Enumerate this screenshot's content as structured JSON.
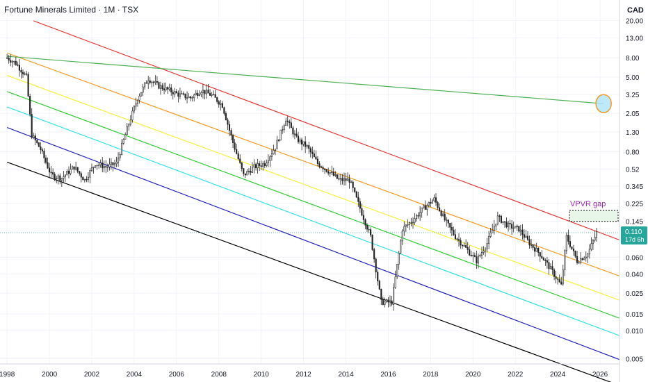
{
  "header": {
    "title": "Fortune Minerals Limited · 1M · TSX",
    "currency": "CAD"
  },
  "colors": {
    "up": "#26a69a",
    "down": "#ef5350",
    "candle_body": "#111111",
    "red_line": "#e53935",
    "orange_line": "#f59a23",
    "yellow_line": "#f7ef3a",
    "green_line": "#33cc33",
    "cyan_line": "#33e0e6",
    "blue_line": "#2222bb",
    "black_line": "#000000",
    "resistance_line": "#4caf50",
    "vpvr_label": "#9c27b0",
    "price_label_bg": "#26a69a"
  },
  "chart_data": {
    "type": "candlestick",
    "title": "Fortune Minerals Limited · 1M · TSX",
    "y_scale": "log",
    "ylim": [
      0.0044,
      33
    ],
    "xlim": [
      "1997-09",
      "2026-12"
    ],
    "y_ticks": [
      "20.00",
      "13.00",
      "8.00",
      "5.00",
      "3.25",
      "2.05",
      "1.30",
      "0.80",
      "0.52",
      "0.345",
      "0.225",
      "0.145",
      "0.060",
      "0.040",
      "0.025",
      "0.015",
      "0.010",
      "0.005"
    ],
    "x_ticks": [
      "1998",
      "2000",
      "2002",
      "2004",
      "2006",
      "2008",
      "2010",
      "2012",
      "2014",
      "2016",
      "2018",
      "2020",
      "2022",
      "2024",
      "2026"
    ],
    "last_price": "0.110",
    "countdown": "17d 6h",
    "annotation": "VPVR gap",
    "vpvr_gap_range": [
      0.145,
      0.19
    ],
    "ellipse_marker": {
      "date": "2026-03",
      "price": 2.6
    },
    "price_path": [
      [
        "1998-01",
        8.0
      ],
      [
        "1998-06",
        7.0
      ],
      [
        "1998-12",
        5.0
      ],
      [
        "1999-03",
        1.2
      ],
      [
        "1999-08",
        0.85
      ],
      [
        "2000-02",
        0.45
      ],
      [
        "2000-08",
        0.42
      ],
      [
        "2001-03",
        0.55
      ],
      [
        "2001-09",
        0.4
      ],
      [
        "2002-03",
        0.6
      ],
      [
        "2002-09",
        0.55
      ],
      [
        "2003-03",
        0.6
      ],
      [
        "2003-09",
        1.4
      ],
      [
        "2004-03",
        3.0
      ],
      [
        "2004-09",
        4.8
      ],
      [
        "2005-03",
        4.0
      ],
      [
        "2005-09",
        3.6
      ],
      [
        "2006-03",
        3.2
      ],
      [
        "2006-09",
        3.0
      ],
      [
        "2007-03",
        3.6
      ],
      [
        "2007-09",
        3.2
      ],
      [
        "2008-03",
        2.5
      ],
      [
        "2008-09",
        1.0
      ],
      [
        "2009-03",
        0.45
      ],
      [
        "2009-09",
        0.55
      ],
      [
        "2010-03",
        0.6
      ],
      [
        "2010-09",
        0.9
      ],
      [
        "2011-03",
        1.8
      ],
      [
        "2011-09",
        1.1
      ],
      [
        "2012-03",
        0.9
      ],
      [
        "2012-09",
        0.6
      ],
      [
        "2013-03",
        0.5
      ],
      [
        "2013-09",
        0.4
      ],
      [
        "2014-03",
        0.4
      ],
      [
        "2014-09",
        0.2
      ],
      [
        "2015-03",
        0.1
      ],
      [
        "2015-09",
        0.02
      ],
      [
        "2016-03",
        0.02
      ],
      [
        "2016-09",
        0.12
      ],
      [
        "2017-03",
        0.15
      ],
      [
        "2017-09",
        0.2
      ],
      [
        "2018-03",
        0.25
      ],
      [
        "2018-09",
        0.15
      ],
      [
        "2019-03",
        0.1
      ],
      [
        "2019-09",
        0.075
      ],
      [
        "2020-03",
        0.055
      ],
      [
        "2020-09",
        0.085
      ],
      [
        "2021-03",
        0.16
      ],
      [
        "2021-09",
        0.13
      ],
      [
        "2022-03",
        0.12
      ],
      [
        "2022-09",
        0.085
      ],
      [
        "2023-03",
        0.065
      ],
      [
        "2023-09",
        0.045
      ],
      [
        "2024-03",
        0.03
      ],
      [
        "2024-06",
        0.1
      ],
      [
        "2024-12",
        0.055
      ],
      [
        "2025-06",
        0.065
      ],
      [
        "2025-11",
        0.11
      ]
    ],
    "trendlines": [
      {
        "name": "red",
        "color_key": "red_line",
        "p1": [
          "1999-04",
          19.8
        ],
        "p2": [
          "2026-12",
          0.092
        ]
      },
      {
        "name": "orange",
        "color_key": "orange_line",
        "p1": [
          "1998-01",
          9.0
        ],
        "p2": [
          "2026-12",
          0.038
        ]
      },
      {
        "name": "yellow",
        "color_key": "yellow_line",
        "p1": [
          "1998-01",
          5.2
        ],
        "p2": [
          "2026-12",
          0.021
        ]
      },
      {
        "name": "green",
        "color_key": "green_line",
        "p1": [
          "1998-01",
          3.5
        ],
        "p2": [
          "2026-12",
          0.0135
        ]
      },
      {
        "name": "cyan",
        "color_key": "cyan_line",
        "p1": [
          "1998-01",
          2.4
        ],
        "p2": [
          "2026-12",
          0.0088
        ]
      },
      {
        "name": "blue",
        "color_key": "blue_line",
        "p1": [
          "1998-01",
          1.45
        ],
        "p2": [
          "2026-12",
          0.0049
        ]
      },
      {
        "name": "black",
        "color_key": "black_line",
        "p1": [
          "1998-01",
          0.62
        ],
        "p2": [
          "2026-12",
          0.0026
        ]
      },
      {
        "name": "resistance",
        "color_key": "resistance_line",
        "p1": [
          "1998-01",
          8.3
        ],
        "p2": [
          "2026-03",
          2.6
        ]
      }
    ]
  }
}
